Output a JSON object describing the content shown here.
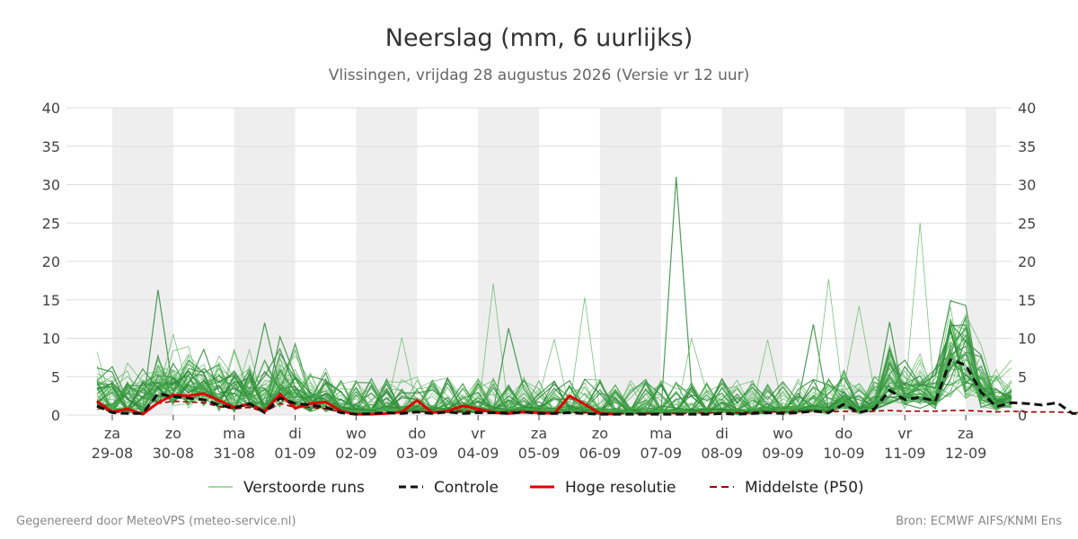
{
  "chart_data": {
    "type": "line",
    "title": "Neerslag (mm, 6 uurlijks)",
    "subtitle": "Vlissingen, vrijdag 28 augustus 2026 (Versie vr 12 uur)",
    "ylim": [
      0,
      40
    ],
    "yticks": [
      0,
      5,
      10,
      15,
      20,
      25,
      30,
      35,
      40
    ],
    "grid": true,
    "x_start_date": "2026-08-28 18:00",
    "x_end_date": "2026-09-12 12:00",
    "x_ticks": [
      {
        "date": "2026-08-29 00:00",
        "day": "za",
        "date_label": "29-08"
      },
      {
        "date": "2026-08-30 00:00",
        "day": "zo",
        "date_label": "30-08"
      },
      {
        "date": "2026-08-31 00:00",
        "day": "ma",
        "date_label": "31-08"
      },
      {
        "date": "2026-09-01 00:00",
        "day": "di",
        "date_label": "01-09"
      },
      {
        "date": "2026-09-02 00:00",
        "day": "wo",
        "date_label": "02-09"
      },
      {
        "date": "2026-09-03 00:00",
        "day": "do",
        "date_label": "03-09"
      },
      {
        "date": "2026-09-04 00:00",
        "day": "vr",
        "date_label": "04-09"
      },
      {
        "date": "2026-09-05 00:00",
        "day": "za",
        "date_label": "05-09"
      },
      {
        "date": "2026-09-06 00:00",
        "day": "zo",
        "date_label": "06-09"
      },
      {
        "date": "2026-09-07 00:00",
        "day": "ma",
        "date_label": "07-09"
      },
      {
        "date": "2026-09-08 00:00",
        "day": "di",
        "date_label": "08-09"
      },
      {
        "date": "2026-09-09 00:00",
        "day": "wo",
        "date_label": "09-09"
      },
      {
        "date": "2026-09-10 00:00",
        "day": "do",
        "date_label": "10-09"
      },
      {
        "date": "2026-09-11 00:00",
        "day": "vr",
        "date_label": "11-09"
      },
      {
        "date": "2026-09-12 00:00",
        "day": "za",
        "date_label": "12-09"
      }
    ],
    "shaded_bands": [
      [
        "2026-08-29 00:00",
        "2026-08-30 00:00"
      ],
      [
        "2026-08-31 00:00",
        "2026-09-01 00:00"
      ],
      [
        "2026-09-02 00:00",
        "2026-09-03 00:00"
      ],
      [
        "2026-09-04 00:00",
        "2026-09-05 00:00"
      ],
      [
        "2026-09-06 00:00",
        "2026-09-07 00:00"
      ],
      [
        "2026-09-08 00:00",
        "2026-09-09 00:00"
      ],
      [
        "2026-09-10 00:00",
        "2026-09-11 00:00"
      ],
      [
        "2026-09-12 00:00",
        "2026-09-12 12:00"
      ]
    ],
    "legend_placement": "bottom",
    "legend": [
      {
        "label": "Verstoorde runs",
        "color": "#4caf50",
        "style": "thin"
      },
      {
        "label": "Controle",
        "color": "#111111",
        "style": "dashed"
      },
      {
        "label": "Hoge resolutie",
        "color": "#e00000",
        "style": "solid"
      },
      {
        "label": "Middelste (P50)",
        "color": "#a00000",
        "style": "dashed"
      }
    ],
    "series": [
      {
        "role": "control",
        "color": "#111111",
        "x_start": "2026-08-28 18:00",
        "x_end": "2026-09-12 12:00",
        "values": [
          1.2,
          0.3,
          0.2,
          0.2,
          2.8,
          2.4,
          2.2,
          2.0,
          1.3,
          0.9,
          1.5,
          0.3,
          2.2,
          1.5,
          1.3,
          1.0,
          0.3,
          0.1,
          0.2,
          0.3,
          0.2,
          0.4,
          0.2,
          0.4,
          0.2,
          0.3,
          0.3,
          0.2,
          0.4,
          0.2,
          0.2,
          0.3,
          0.2,
          0.1,
          0.1,
          0.1,
          0.1,
          0.1,
          0.1,
          0.1,
          0.1,
          0.2,
          0.1,
          0.2,
          0.3,
          0.2,
          0.3,
          0.5,
          0.3,
          1.4,
          0.3,
          0.8,
          3.2,
          2.0,
          2.3,
          1.8,
          7.2,
          6.5,
          3.0,
          1.1,
          1.6,
          1.5,
          1.3,
          1.6,
          0.2,
          0.2
        ]
      },
      {
        "role": "high-resolution",
        "color": "#e00000",
        "x_start": "2026-08-28 18:00",
        "x_end": "2026-09-06 06:00",
        "values": [
          1.8,
          0.4,
          0.8,
          0.1,
          1.6,
          2.6,
          2.5,
          2.8,
          1.9,
          1.0,
          1.4,
          0.5,
          2.7,
          0.9,
          1.5,
          1.7,
          0.5,
          0.1,
          0.1,
          0.2,
          0.4,
          1.9,
          0.3,
          0.5,
          1.2,
          0.8,
          0.3,
          0.2,
          0.4,
          0.3,
          0.2,
          2.5,
          1.4,
          0.2,
          0.1
        ]
      },
      {
        "role": "median",
        "color": "#a00000",
        "x_start": "2026-08-28 18:00",
        "x_end": "2026-09-12 12:00",
        "values": [
          1.0,
          0.4,
          0.3,
          0.2,
          1.5,
          1.8,
          1.7,
          1.6,
          1.1,
          0.8,
          1.0,
          0.4,
          1.5,
          1.0,
          1.0,
          0.8,
          0.4,
          0.2,
          0.2,
          0.3,
          0.3,
          0.5,
          0.4,
          0.5,
          0.5,
          0.5,
          0.4,
          0.4,
          0.5,
          0.4,
          0.3,
          0.4,
          0.3,
          0.2,
          0.2,
          0.2,
          0.2,
          0.2,
          0.2,
          0.2,
          0.3,
          0.3,
          0.3,
          0.4,
          0.4,
          0.4,
          0.5,
          0.5,
          0.4,
          0.5,
          0.4,
          0.5,
          0.6,
          0.5,
          0.5,
          0.5,
          0.6,
          0.6,
          0.5,
          0.4,
          0.5,
          0.4,
          0.4,
          0.4,
          0.3,
          0.3
        ]
      }
    ],
    "perturbed_runs": {
      "color": "#4caf50",
      "x_start": "2026-08-28 18:00",
      "x_end": "2026-09-12 18:00",
      "peaks": [
        {
          "x": "2026-08-29 18:00",
          "y": 16.3
        },
        {
          "x": "2026-08-30 00:00",
          "y": 10.5
        },
        {
          "x": "2026-08-31 00:00",
          "y": 8.3
        },
        {
          "x": "2026-08-31 12:00",
          "y": 12.0
        },
        {
          "x": "2026-09-02 18:00",
          "y": 10.1
        },
        {
          "x": "2026-09-04 06:00",
          "y": 17.1
        },
        {
          "x": "2026-09-04 12:00",
          "y": 11.3
        },
        {
          "x": "2026-09-05 06:00",
          "y": 9.9
        },
        {
          "x": "2026-09-05 18:00",
          "y": 15.3
        },
        {
          "x": "2026-09-07 06:00",
          "y": 31.0
        },
        {
          "x": "2026-09-07 12:00",
          "y": 10.0
        },
        {
          "x": "2026-09-08 18:00",
          "y": 9.8
        },
        {
          "x": "2026-09-09 12:00",
          "y": 11.8
        },
        {
          "x": "2026-09-09 18:00",
          "y": 17.7
        },
        {
          "x": "2026-09-10 06:00",
          "y": 14.2
        },
        {
          "x": "2026-09-10 18:00",
          "y": 12.1
        },
        {
          "x": "2026-09-11 06:00",
          "y": 25.0
        },
        {
          "x": "2026-09-11 18:00",
          "y": 12.4
        }
      ]
    }
  },
  "footer": {
    "left": "Gegenereerd door MeteoVPS (meteo-service.nl)",
    "right": "Bron: ECMWF AIFS/KNMI Ens"
  }
}
